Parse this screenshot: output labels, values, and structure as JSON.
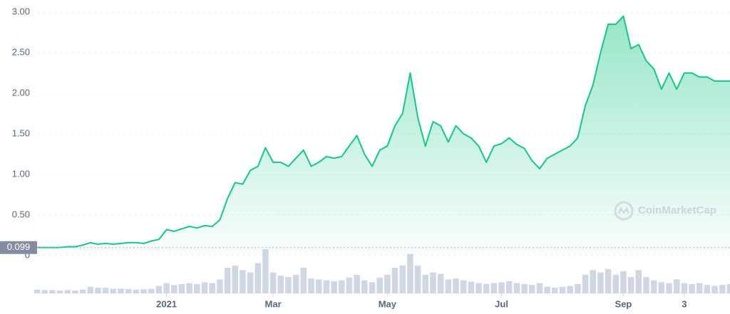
{
  "chart_data": {
    "type": "area",
    "watermark": "CoinMarketCap",
    "start_price": 0.099,
    "ylim": [
      0,
      3.0
    ],
    "yticks": [
      0,
      {
        "value": 0.5,
        "label": "0.50"
      },
      {
        "value": 1,
        "label": "1.00"
      },
      {
        "value": 1.5,
        "label": "1.50"
      },
      {
        "value": 2,
        "label": "2.00"
      },
      {
        "value": 2.5,
        "label": "2.50"
      },
      {
        "value": 3,
        "label": "3.00"
      }
    ],
    "xlim": [
      0,
      91
    ],
    "xticks": [
      {
        "value": 17,
        "label": "2021"
      },
      {
        "value": 31,
        "label": "Mar"
      },
      {
        "value": 46,
        "label": "May"
      },
      {
        "value": 61,
        "label": "Jul"
      },
      {
        "value": 77,
        "label": "Sep"
      },
      {
        "value": 85,
        "label": "3"
      }
    ],
    "grid": true,
    "series": [
      {
        "name": "Price",
        "color": "#16c784",
        "values": [
          0.1,
          0.1,
          0.1,
          0.1,
          0.11,
          0.11,
          0.13,
          0.16,
          0.14,
          0.15,
          0.14,
          0.15,
          0.16,
          0.16,
          0.15,
          0.18,
          0.2,
          0.32,
          0.3,
          0.33,
          0.36,
          0.34,
          0.37,
          0.36,
          0.44,
          0.7,
          0.9,
          0.88,
          1.05,
          1.1,
          1.33,
          1.15,
          1.15,
          1.1,
          1.2,
          1.3,
          1.1,
          1.15,
          1.22,
          1.2,
          1.22,
          1.35,
          1.48,
          1.25,
          1.1,
          1.3,
          1.35,
          1.6,
          1.75,
          2.25,
          1.7,
          1.35,
          1.65,
          1.6,
          1.4,
          1.6,
          1.5,
          1.45,
          1.35,
          1.15,
          1.35,
          1.38,
          1.45,
          1.37,
          1.32,
          1.17,
          1.07,
          1.2,
          1.25,
          1.3,
          1.35,
          1.45,
          1.85,
          2.1,
          2.5,
          2.85,
          2.85,
          2.95,
          2.55,
          2.6,
          2.4,
          2.3,
          2.05,
          2.25,
          2.05,
          2.25,
          2.25,
          2.2,
          2.2,
          2.15,
          2.15,
          2.15
        ]
      },
      {
        "name": "Volume",
        "color": "#cfd6e4",
        "values": [
          8,
          7,
          7,
          6,
          7,
          6,
          8,
          14,
          12,
          12,
          10,
          10,
          9,
          8,
          9,
          10,
          16,
          22,
          18,
          20,
          22,
          20,
          24,
          22,
          30,
          55,
          60,
          50,
          45,
          65,
          95,
          45,
          38,
          35,
          40,
          55,
          32,
          30,
          28,
          26,
          28,
          34,
          40,
          28,
          24,
          34,
          40,
          55,
          60,
          85,
          60,
          40,
          45,
          42,
          30,
          32,
          28,
          25,
          22,
          20,
          22,
          24,
          26,
          22,
          20,
          18,
          22,
          14,
          12,
          14,
          16,
          20,
          40,
          50,
          45,
          52,
          40,
          48,
          35,
          50,
          35,
          28,
          24,
          22,
          30,
          22,
          20,
          22,
          18,
          16,
          18,
          20
        ]
      }
    ]
  }
}
